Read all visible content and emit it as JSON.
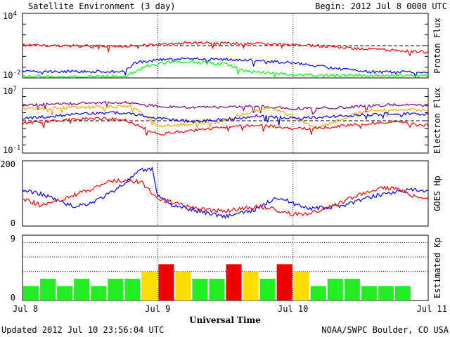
{
  "header": {
    "title": "Satellite Environment (3 day)",
    "begin": "Begin:  2012 Jul 8 0000 UTC"
  },
  "footer": {
    "updated": "Updated 2012 Jul 10 23:56:04 UTC",
    "credit": "NOAA/SWPC Boulder, CO USA"
  },
  "colors": {
    "red": "#ff0000",
    "blue": "#0000ff",
    "green": "#00ff00",
    "orange": "#ffa500",
    "purple": "#7f007f",
    "kp_green": "#22ee22",
    "kp_yellow": "#ffdd00",
    "kp_red": "#ee0000"
  },
  "chart_data": [
    {
      "type": "line",
      "name": "proton-flux",
      "ylabel": "Proton Flux",
      "yscale": "log",
      "ylim": [
        0.01,
        10000
      ],
      "yticks": [
        {
          "base": "10",
          "exp": "4"
        },
        {
          "base": "10",
          "exp": "-2"
        }
      ],
      "threshold": 10,
      "series": [
        {
          "color": "red",
          "points": [
            [
              0,
              11
            ],
            [
              6,
              10
            ],
            [
              12,
              9
            ],
            [
              18,
              9
            ],
            [
              24,
              12
            ],
            [
              30,
              18
            ],
            [
              36,
              17
            ],
            [
              42,
              14
            ],
            [
              48,
              12
            ],
            [
              54,
              9
            ],
            [
              60,
              5
            ],
            [
              66,
              3.5
            ],
            [
              72,
              2.5
            ]
          ]
        },
        {
          "color": "blue",
          "points": [
            [
              0,
              0.04
            ],
            [
              6,
              0.04
            ],
            [
              12,
              0.038
            ],
            [
              18,
              0.04
            ],
            [
              20,
              0.25
            ],
            [
              24,
              0.5
            ],
            [
              30,
              0.6
            ],
            [
              36,
              0.55
            ],
            [
              42,
              0.4
            ],
            [
              48,
              0.25
            ],
            [
              54,
              0.1
            ],
            [
              60,
              0.04
            ],
            [
              66,
              0.035
            ],
            [
              72,
              0.035
            ]
          ]
        },
        {
          "color": "green",
          "points": [
            [
              0,
              0.014
            ],
            [
              6,
              0.013
            ],
            [
              12,
              0.013
            ],
            [
              18,
              0.014
            ],
            [
              22,
              0.12
            ],
            [
              26,
              0.3
            ],
            [
              30,
              0.3
            ],
            [
              36,
              0.2
            ],
            [
              40,
              0.04
            ],
            [
              48,
              0.02
            ],
            [
              54,
              0.018
            ],
            [
              60,
              0.017
            ],
            [
              66,
              0.017
            ],
            [
              72,
              0.017
            ]
          ]
        }
      ]
    },
    {
      "type": "line",
      "name": "electron-flux",
      "ylabel": "Electron Flux",
      "yscale": "log",
      "ylim": [
        0.1,
        10000000
      ],
      "yticks": [
        {
          "base": "10",
          "exp": "7"
        },
        {
          "base": "10",
          "exp": "-1"
        }
      ],
      "threshold": 1000,
      "series": [
        {
          "color": "purple",
          "points": [
            [
              0,
              80000
            ],
            [
              6,
              120000
            ],
            [
              12,
              150000
            ],
            [
              18,
              180000
            ],
            [
              24,
              60000
            ],
            [
              30,
              40000
            ],
            [
              36,
              50000
            ],
            [
              42,
              70000
            ],
            [
              48,
              30000
            ],
            [
              54,
              40000
            ],
            [
              60,
              60000
            ],
            [
              66,
              100000
            ],
            [
              72,
              80000
            ]
          ]
        },
        {
          "color": "orange",
          "points": [
            [
              0,
              30000
            ],
            [
              6,
              40000
            ],
            [
              12,
              50000
            ],
            [
              18,
              60000
            ],
            [
              20,
              40000
            ],
            [
              24,
              200
            ],
            [
              28,
              300
            ],
            [
              32,
              500
            ],
            [
              36,
              1000
            ],
            [
              40,
              10000
            ],
            [
              44,
              50000
            ],
            [
              48,
              3000
            ],
            [
              52,
              100
            ],
            [
              56,
              1000
            ],
            [
              60,
              15000
            ],
            [
              66,
              25000
            ],
            [
              72,
              20000
            ]
          ]
        },
        {
          "color": "blue",
          "points": [
            [
              0,
              2000
            ],
            [
              6,
              4000
            ],
            [
              12,
              8000
            ],
            [
              18,
              10000
            ],
            [
              24,
              2000
            ],
            [
              30,
              800
            ],
            [
              36,
              1500
            ],
            [
              42,
              4000
            ],
            [
              48,
              2000
            ],
            [
              54,
              3000
            ],
            [
              60,
              5000
            ],
            [
              66,
              8000
            ],
            [
              72,
              6000
            ]
          ]
        },
        {
          "color": "red",
          "points": [
            [
              0,
              500
            ],
            [
              6,
              1000
            ],
            [
              12,
              2000
            ],
            [
              18,
              1500
            ],
            [
              24,
              20
            ],
            [
              30,
              60
            ],
            [
              36,
              150
            ],
            [
              42,
              300
            ],
            [
              48,
              100
            ],
            [
              54,
              150
            ],
            [
              60,
              400
            ],
            [
              66,
              700
            ],
            [
              72,
              300
            ]
          ]
        }
      ]
    },
    {
      "type": "line",
      "name": "goes-hp",
      "ylabel": "GOES Hp",
      "ylim": [
        0,
        200
      ],
      "yticks": [
        0,
        200
      ],
      "series": [
        {
          "color": "blue",
          "points": [
            [
              0,
              110
            ],
            [
              3,
              100
            ],
            [
              6,
              80
            ],
            [
              9,
              60
            ],
            [
              12,
              70
            ],
            [
              15,
              95
            ],
            [
              18,
              130
            ],
            [
              21,
              170
            ],
            [
              23,
              175
            ],
            [
              24,
              95
            ],
            [
              27,
              60
            ],
            [
              30,
              50
            ],
            [
              33,
              40
            ],
            [
              36,
              30
            ],
            [
              39,
              40
            ],
            [
              42,
              55
            ],
            [
              45,
              90
            ],
            [
              48,
              70
            ],
            [
              51,
              55
            ],
            [
              54,
              55
            ],
            [
              57,
              65
            ],
            [
              60,
              80
            ],
            [
              63,
              95
            ],
            [
              66,
              105
            ],
            [
              69,
              110
            ],
            [
              72,
              105
            ]
          ]
        },
        {
          "color": "red",
          "points": [
            [
              0,
              85
            ],
            [
              3,
              65
            ],
            [
              6,
              75
            ],
            [
              9,
              95
            ],
            [
              12,
              110
            ],
            [
              15,
              135
            ],
            [
              18,
              140
            ],
            [
              21,
              135
            ],
            [
              24,
              85
            ],
            [
              27,
              70
            ],
            [
              30,
              55
            ],
            [
              33,
              50
            ],
            [
              36,
              45
            ],
            [
              39,
              55
            ],
            [
              42,
              60
            ],
            [
              45,
              50
            ],
            [
              48,
              35
            ],
            [
              51,
              40
            ],
            [
              54,
              55
            ],
            [
              57,
              75
            ],
            [
              60,
              100
            ],
            [
              63,
              115
            ],
            [
              66,
              115
            ],
            [
              69,
              95
            ],
            [
              72,
              80
            ]
          ]
        }
      ]
    },
    {
      "type": "bar",
      "name": "estimated-kp",
      "ylabel": "Estimated Kp",
      "ylim": [
        0,
        9
      ],
      "yticks": [
        0,
        9
      ],
      "dotted_levels": [
        4,
        6,
        8,
        9
      ],
      "values": [
        2,
        3,
        2,
        3,
        2,
        3,
        3,
        4,
        5,
        4,
        3,
        3,
        5,
        4,
        3,
        5,
        4,
        2,
        3,
        3,
        2,
        2,
        2
      ],
      "xlabel": "Universal Time",
      "xticks": [
        "Jul 8",
        "Jul 9",
        "Jul 10",
        "Jul 11"
      ]
    }
  ]
}
